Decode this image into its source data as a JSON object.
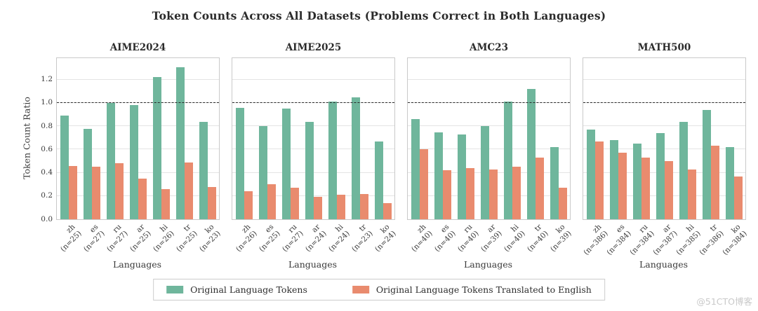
{
  "figure": {
    "title": "Token Counts Across All Datasets (Problems Correct in Both Languages)",
    "watermark": "@51CTO博客"
  },
  "colors": {
    "original": "#6fb69c",
    "translated": "#e98b6e",
    "grid": "#e4e4e4",
    "frame": "#c9c9c9",
    "reference_line": "#2a2a2a"
  },
  "axes": {
    "ylabel": "Token Count Ratio",
    "xlabel": "Languages",
    "ytick_labels": [
      "0.0",
      "0.2",
      "0.4",
      "0.6",
      "0.8",
      "1.0",
      "1.2"
    ],
    "yticks": [
      0.0,
      0.2,
      0.4,
      0.6,
      0.8,
      1.0,
      1.2
    ],
    "ylim": [
      0,
      1.385
    ],
    "reference_line": 1.0,
    "grid": "horizontal"
  },
  "legend": {
    "items": [
      {
        "label": "Original Language Tokens",
        "color_key": "original"
      },
      {
        "label": "Original Language Tokens Translated to English",
        "color_key": "translated"
      }
    ],
    "position": "bottom-center"
  },
  "chart_data": [
    {
      "type": "bar",
      "title": "AIME2024",
      "categories": [
        "zh",
        "es",
        "ru",
        "ar",
        "hi",
        "tr",
        "ko"
      ],
      "counts": [
        "n=25",
        "n=27",
        "n=27",
        "n=25",
        "n=26",
        "n=25",
        "n=23"
      ],
      "xlabel": "Languages",
      "ylabel": "Token Count Ratio",
      "ylim": [
        0,
        1.385
      ],
      "series": [
        {
          "name": "Original Language Tokens",
          "values": [
            0.89,
            0.78,
            1.0,
            0.98,
            1.22,
            1.31,
            0.84
          ]
        },
        {
          "name": "Original Language Tokens Translated to English",
          "values": [
            0.46,
            0.45,
            0.48,
            0.35,
            0.26,
            0.49,
            0.28
          ]
        }
      ]
    },
    {
      "type": "bar",
      "title": "AIME2025",
      "categories": [
        "zh",
        "es",
        "ru",
        "ar",
        "hi",
        "tr",
        "ko"
      ],
      "counts": [
        "n=26",
        "n=25",
        "n=27",
        "n=24",
        "n=24",
        "n=23",
        "n=24"
      ],
      "xlabel": "Languages",
      "ylim": [
        0,
        1.385
      ],
      "series": [
        {
          "name": "Original Language Tokens",
          "values": [
            0.96,
            0.8,
            0.95,
            0.84,
            1.01,
            1.05,
            0.67
          ]
        },
        {
          "name": "Original Language Tokens Translated to English",
          "values": [
            0.24,
            0.3,
            0.27,
            0.19,
            0.21,
            0.22,
            0.14
          ]
        }
      ]
    },
    {
      "type": "bar",
      "title": "AMC23",
      "categories": [
        "zh",
        "es",
        "ru",
        "ar",
        "hi",
        "tr",
        "ko"
      ],
      "counts": [
        "n=40",
        "n=40",
        "n=40",
        "n=39",
        "n=40",
        "n=40",
        "n=39"
      ],
      "xlabel": "Languages",
      "ylim": [
        0,
        1.385
      ],
      "series": [
        {
          "name": "Original Language Tokens",
          "values": [
            0.86,
            0.75,
            0.73,
            0.8,
            1.01,
            1.12,
            0.62
          ]
        },
        {
          "name": "Original Language Tokens Translated to English",
          "values": [
            0.6,
            0.42,
            0.44,
            0.43,
            0.45,
            0.53,
            0.27
          ]
        }
      ]
    },
    {
      "type": "bar",
      "title": "MATH500",
      "categories": [
        "zh",
        "es",
        "ru",
        "ar",
        "hi",
        "tr",
        "ko"
      ],
      "counts": [
        "n=386",
        "n=384",
        "n=384",
        "n=387",
        "n=385",
        "n=386",
        "n=384"
      ],
      "xlabel": "Languages",
      "ylim": [
        0,
        1.385
      ],
      "series": [
        {
          "name": "Original Language Tokens",
          "values": [
            0.77,
            0.68,
            0.65,
            0.74,
            0.84,
            0.94,
            0.62
          ]
        },
        {
          "name": "Original Language Tokens Translated to English",
          "values": [
            0.67,
            0.57,
            0.53,
            0.5,
            0.43,
            0.63,
            0.37
          ]
        }
      ]
    }
  ]
}
